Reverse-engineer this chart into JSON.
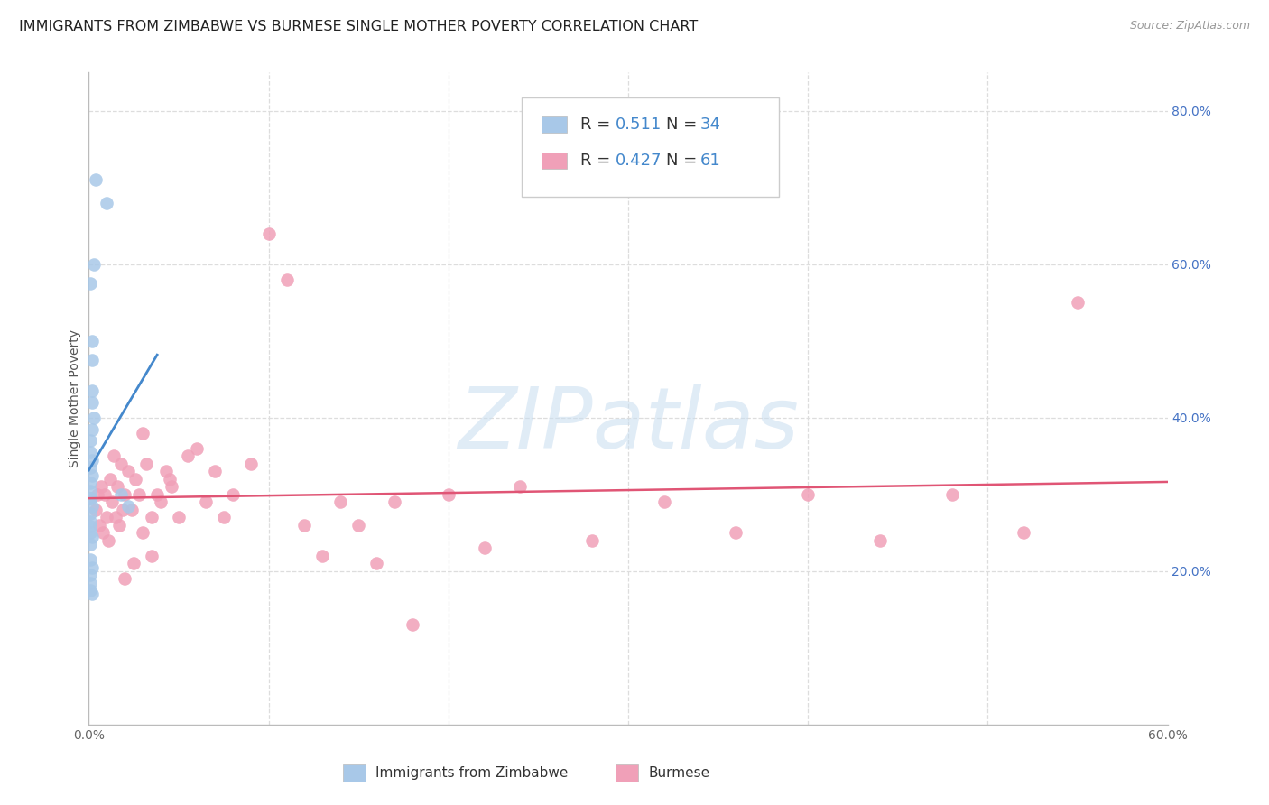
{
  "title": "IMMIGRANTS FROM ZIMBABWE VS BURMESE SINGLE MOTHER POVERTY CORRELATION CHART",
  "source": "Source: ZipAtlas.com",
  "ylabel": "Single Mother Poverty",
  "xlim": [
    0.0,
    0.6
  ],
  "ylim": [
    0.0,
    0.85
  ],
  "x_ticks": [
    0.0,
    0.1,
    0.2,
    0.3,
    0.4,
    0.5,
    0.6
  ],
  "x_tick_labels": [
    "0.0%",
    "",
    "",
    "",
    "",
    "",
    "60.0%"
  ],
  "y_ticks_right": [
    0.2,
    0.4,
    0.6,
    0.8
  ],
  "y_tick_labels_right": [
    "20.0%",
    "40.0%",
    "60.0%",
    "80.0%"
  ],
  "blue_color": "#a8c8e8",
  "blue_line_color": "#4488cc",
  "pink_color": "#f0a0b8",
  "pink_line_color": "#e05575",
  "bottom_label1": "Immigrants from Zimbabwe",
  "bottom_label2": "Burmese",
  "background_color": "#ffffff",
  "grid_color": "#dddddd",
  "title_fontsize": 11.5,
  "tick_fontsize": 10,
  "blue_x": [
    0.004,
    0.01,
    0.002,
    0.002,
    0.002,
    0.002,
    0.003,
    0.002,
    0.001,
    0.001,
    0.002,
    0.001,
    0.002,
    0.001,
    0.001,
    0.001,
    0.002,
    0.001,
    0.001,
    0.001,
    0.001,
    0.002,
    0.001,
    0.001,
    0.003,
    0.001,
    0.018,
    0.022,
    0.001,
    0.001,
    0.001,
    0.002,
    0.002,
    0.001
  ],
  "blue_y": [
    0.71,
    0.68,
    0.5,
    0.475,
    0.435,
    0.42,
    0.4,
    0.385,
    0.37,
    0.355,
    0.345,
    0.335,
    0.325,
    0.315,
    0.305,
    0.295,
    0.285,
    0.275,
    0.265,
    0.258,
    0.25,
    0.245,
    0.235,
    0.295,
    0.6,
    0.575,
    0.3,
    0.285,
    0.195,
    0.185,
    0.175,
    0.17,
    0.205,
    0.215
  ],
  "pink_x": [
    0.004,
    0.005,
    0.006,
    0.007,
    0.008,
    0.009,
    0.01,
    0.011,
    0.012,
    0.013,
    0.014,
    0.015,
    0.016,
    0.017,
    0.018,
    0.019,
    0.02,
    0.022,
    0.024,
    0.026,
    0.028,
    0.03,
    0.032,
    0.035,
    0.038,
    0.04,
    0.043,
    0.046,
    0.05,
    0.055,
    0.06,
    0.065,
    0.07,
    0.075,
    0.08,
    0.09,
    0.1,
    0.11,
    0.12,
    0.13,
    0.14,
    0.15,
    0.16,
    0.17,
    0.18,
    0.2,
    0.22,
    0.24,
    0.28,
    0.32,
    0.36,
    0.4,
    0.44,
    0.48,
    0.52,
    0.55,
    0.03,
    0.045,
    0.02,
    0.025,
    0.035
  ],
  "pink_y": [
    0.28,
    0.3,
    0.26,
    0.31,
    0.25,
    0.3,
    0.27,
    0.24,
    0.32,
    0.29,
    0.35,
    0.27,
    0.31,
    0.26,
    0.34,
    0.28,
    0.3,
    0.33,
    0.28,
    0.32,
    0.3,
    0.25,
    0.34,
    0.27,
    0.3,
    0.29,
    0.33,
    0.31,
    0.27,
    0.35,
    0.36,
    0.29,
    0.33,
    0.27,
    0.3,
    0.34,
    0.64,
    0.58,
    0.26,
    0.22,
    0.29,
    0.26,
    0.21,
    0.29,
    0.13,
    0.3,
    0.23,
    0.31,
    0.24,
    0.29,
    0.25,
    0.3,
    0.24,
    0.3,
    0.25,
    0.55,
    0.38,
    0.32,
    0.19,
    0.21,
    0.22
  ],
  "watermark_text": "ZIPatlas",
  "watermark_color": "#c8ddf0",
  "watermark_alpha": 0.55
}
